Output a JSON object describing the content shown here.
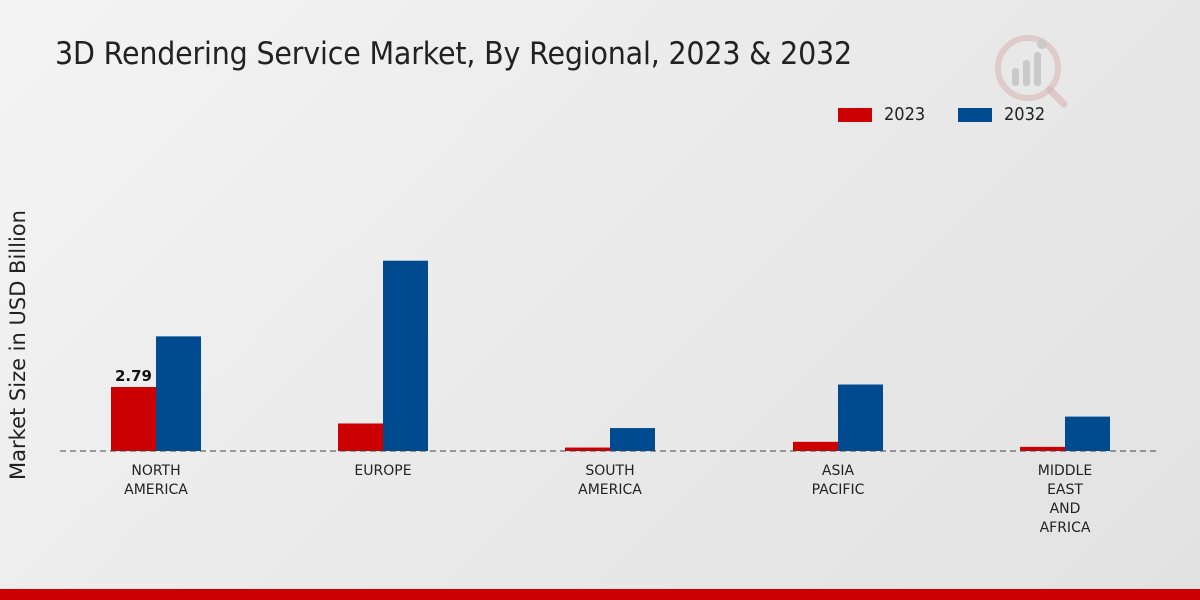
{
  "colors": {
    "series_2023": "#cc0000",
    "series_2032": "#004a8f",
    "footer": "#cc0000"
  },
  "logo": {
    "icon": "market-research-logo-icon"
  },
  "chart_data": {
    "type": "bar",
    "title": "3D Rendering Service Market, By Regional, 2023 & 2032",
    "xlabel": "",
    "ylabel": "Market Size in USD Billion",
    "ylim": [
      0,
      14
    ],
    "grid": false,
    "legend_position": "top-right",
    "categories": [
      [
        "NORTH",
        "AMERICA"
      ],
      [
        "EUROPE"
      ],
      [
        "SOUTH",
        "AMERICA"
      ],
      [
        "ASIA",
        "PACIFIC"
      ],
      [
        "MIDDLE",
        "EAST",
        "AND",
        "AFRICA"
      ]
    ],
    "series": [
      {
        "name": "2023",
        "values": [
          2.79,
          1.2,
          0.15,
          0.4,
          0.18
        ]
      },
      {
        "name": "2032",
        "values": [
          5.0,
          8.3,
          1.0,
          2.9,
          1.5
        ]
      }
    ],
    "data_labels": [
      {
        "series": 0,
        "index": 0,
        "text": "2.79"
      }
    ]
  }
}
